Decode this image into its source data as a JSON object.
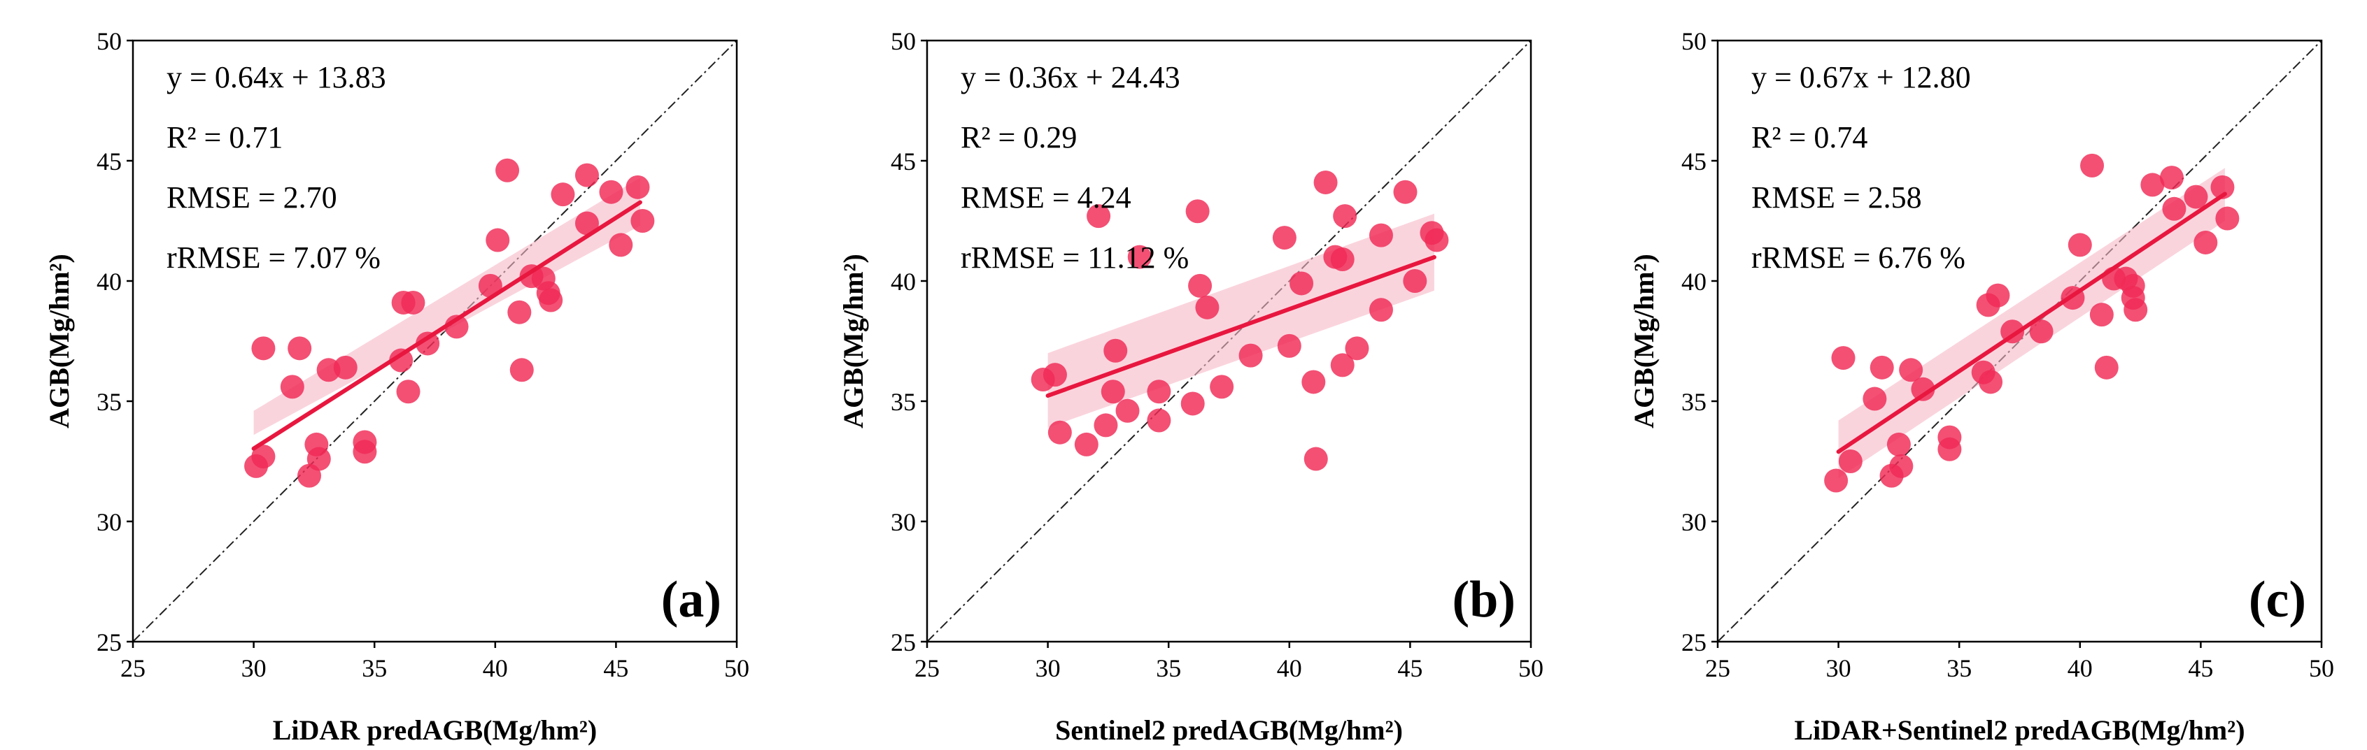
{
  "colors": {
    "point": "#f02a55",
    "fit_line": "#e8173f",
    "band": "#f7b8c6",
    "diagonal": "#222222",
    "axes": "#000000"
  },
  "chart_data": [
    {
      "type": "scatter",
      "panel_label": "(a)",
      "xlabel": "LiDAR predAGB(Mg/hm²)",
      "ylabel": "AGB(Mg/hm²)",
      "xlim": [
        25,
        50
      ],
      "ylim": [
        25,
        50
      ],
      "xticks": [
        "25",
        "30",
        "35",
        "40",
        "45",
        "50"
      ],
      "yticks": [
        "25",
        "30",
        "35",
        "40",
        "45",
        "50"
      ],
      "stats": [
        "y = 0.64x + 13.83",
        "R² = 0.71",
        "RMSE = 2.70",
        "rRMSE = 7.07 %"
      ],
      "fit": {
        "slope": 0.64,
        "intercept": 13.83,
        "x_range": [
          30,
          46
        ],
        "ci_low_start": 33.6,
        "ci_high_start": 34.6,
        "ci_low_end": 42.3,
        "ci_high_end": 44.3
      },
      "points": [
        [
          30.1,
          32.3
        ],
        [
          30.4,
          32.7
        ],
        [
          30.4,
          37.2
        ],
        [
          31.6,
          35.6
        ],
        [
          31.9,
          37.2
        ],
        [
          32.3,
          31.9
        ],
        [
          32.6,
          33.2
        ],
        [
          32.7,
          32.6
        ],
        [
          33.1,
          36.3
        ],
        [
          33.8,
          36.4
        ],
        [
          34.6,
          33.3
        ],
        [
          34.6,
          32.9
        ],
        [
          36.1,
          36.7
        ],
        [
          36.2,
          39.1
        ],
        [
          36.4,
          35.4
        ],
        [
          36.6,
          39.1
        ],
        [
          37.2,
          37.4
        ],
        [
          38.4,
          38.1
        ],
        [
          39.8,
          39.8
        ],
        [
          40.1,
          41.7
        ],
        [
          40.5,
          44.6
        ],
        [
          41.0,
          38.7
        ],
        [
          41.1,
          36.3
        ],
        [
          41.5,
          40.2
        ],
        [
          42.0,
          40.1
        ],
        [
          42.2,
          39.5
        ],
        [
          42.3,
          39.2
        ],
        [
          42.8,
          43.6
        ],
        [
          43.8,
          44.4
        ],
        [
          43.8,
          42.4
        ],
        [
          44.8,
          43.7
        ],
        [
          45.2,
          41.5
        ],
        [
          45.9,
          43.9
        ],
        [
          46.1,
          42.5
        ]
      ]
    },
    {
      "type": "scatter",
      "panel_label": "(b)",
      "xlabel": "Sentinel2 predAGB(Mg/hm²)",
      "ylabel": "AGB(Mg/hm²)",
      "xlim": [
        25,
        50
      ],
      "ylim": [
        25,
        50
      ],
      "xticks": [
        "25",
        "30",
        "35",
        "40",
        "45",
        "50"
      ],
      "yticks": [
        "25",
        "30",
        "35",
        "40",
        "45",
        "50"
      ],
      "stats": [
        "y = 0.36x + 24.43",
        "R² = 0.29",
        "RMSE = 4.24",
        "rRMSE = 11.12 %"
      ],
      "fit": {
        "slope": 0.36,
        "intercept": 24.43,
        "x_range": [
          30,
          46
        ],
        "ci_low_start": 33.9,
        "ci_high_start": 37.0,
        "ci_low_end": 39.6,
        "ci_high_end": 42.8
      },
      "points": [
        [
          29.8,
          35.9
        ],
        [
          30.3,
          36.1
        ],
        [
          30.5,
          33.7
        ],
        [
          31.6,
          33.2
        ],
        [
          32.1,
          42.7
        ],
        [
          32.4,
          34.0
        ],
        [
          32.7,
          35.4
        ],
        [
          32.8,
          37.1
        ],
        [
          33.3,
          34.6
        ],
        [
          33.8,
          41.0
        ],
        [
          34.6,
          34.2
        ],
        [
          34.6,
          35.4
        ],
        [
          36.0,
          34.9
        ],
        [
          36.2,
          42.9
        ],
        [
          36.3,
          39.8
        ],
        [
          36.6,
          38.9
        ],
        [
          37.2,
          35.6
        ],
        [
          38.4,
          36.9
        ],
        [
          39.8,
          41.8
        ],
        [
          40.0,
          37.3
        ],
        [
          40.5,
          39.9
        ],
        [
          41.0,
          35.8
        ],
        [
          41.1,
          32.6
        ],
        [
          41.5,
          44.1
        ],
        [
          41.9,
          41.0
        ],
        [
          42.2,
          40.9
        ],
        [
          42.3,
          42.7
        ],
        [
          42.2,
          36.5
        ],
        [
          42.8,
          37.2
        ],
        [
          43.8,
          41.9
        ],
        [
          43.8,
          38.8
        ],
        [
          44.8,
          43.7
        ],
        [
          45.2,
          40.0
        ],
        [
          45.9,
          42.0
        ],
        [
          46.1,
          41.7
        ]
      ]
    },
    {
      "type": "scatter",
      "panel_label": "(c)",
      "xlabel": "LiDAR+Sentinel2 predAGB(Mg/hm²)",
      "ylabel": "AGB(Mg/hm²)",
      "xlim": [
        25,
        50
      ],
      "ylim": [
        25,
        50
      ],
      "xticks": [
        "25",
        "30",
        "35",
        "40",
        "45",
        "50"
      ],
      "yticks": [
        "25",
        "30",
        "35",
        "40",
        "45",
        "50"
      ],
      "stats": [
        "y = 0.67x + 12.80",
        "R² = 0.74",
        "RMSE = 2.58",
        "rRMSE = 6.76 %"
      ],
      "fit": {
        "slope": 0.67,
        "intercept": 12.8,
        "x_range": [
          30,
          46
        ],
        "ci_low_start": 31.8,
        "ci_high_start": 34.2,
        "ci_low_end": 42.5,
        "ci_high_end": 44.7
      },
      "points": [
        [
          29.9,
          31.7
        ],
        [
          30.2,
          36.8
        ],
        [
          30.5,
          32.5
        ],
        [
          31.5,
          35.1
        ],
        [
          31.8,
          36.4
        ],
        [
          32.2,
          31.9
        ],
        [
          32.5,
          33.2
        ],
        [
          32.6,
          32.3
        ],
        [
          33.0,
          36.3
        ],
        [
          33.5,
          35.5
        ],
        [
          34.6,
          33.5
        ],
        [
          34.6,
          33.0
        ],
        [
          36.0,
          36.2
        ],
        [
          36.2,
          39.0
        ],
        [
          36.3,
          35.8
        ],
        [
          36.6,
          39.4
        ],
        [
          37.2,
          37.9
        ],
        [
          38.4,
          37.9
        ],
        [
          39.7,
          39.3
        ],
        [
          40.0,
          41.5
        ],
        [
          40.5,
          44.8
        ],
        [
          40.9,
          38.6
        ],
        [
          41.1,
          36.4
        ],
        [
          41.4,
          40.1
        ],
        [
          41.9,
          40.1
        ],
        [
          42.2,
          39.8
        ],
        [
          42.2,
          39.3
        ],
        [
          42.3,
          38.8
        ],
        [
          43.0,
          44.0
        ],
        [
          43.8,
          44.3
        ],
        [
          43.9,
          43.0
        ],
        [
          44.8,
          43.5
        ],
        [
          45.2,
          41.6
        ],
        [
          45.9,
          43.9
        ],
        [
          46.1,
          42.6
        ]
      ]
    }
  ]
}
